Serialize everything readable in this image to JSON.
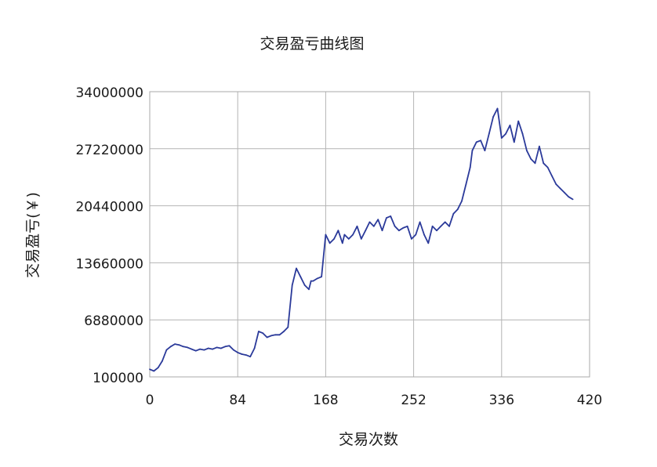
{
  "chart_data": {
    "type": "line",
    "title": "交易盈亏曲线图",
    "xlabel": "交易次数",
    "ylabel": "交易盈亏(￥)",
    "xlim": [
      0,
      420
    ],
    "ylim": [
      100000,
      34000000
    ],
    "x_ticks": [
      "0",
      "84",
      "168",
      "252",
      "336",
      "420"
    ],
    "y_ticks": [
      "100000",
      "6880000",
      "13660000",
      "20440000",
      "27220000",
      "34000000"
    ],
    "grid": true,
    "legend": "none",
    "line_color": "#2b3a9a",
    "series": [
      {
        "x": [
          0,
          4,
          8,
          12,
          16,
          20,
          24,
          28,
          32,
          36,
          40,
          44,
          48,
          52,
          56,
          60,
          64,
          68,
          72,
          76,
          80,
          84,
          88,
          92,
          96,
          100,
          104,
          108,
          112,
          116,
          120,
          124,
          128,
          132,
          136,
          140,
          144,
          148,
          152,
          154,
          156,
          160,
          164,
          168,
          172,
          176,
          180,
          184,
          186,
          190,
          194,
          198,
          202,
          206,
          210,
          214,
          218,
          222,
          226,
          230,
          234,
          238,
          242,
          246,
          250,
          254,
          258,
          262,
          266,
          270,
          274,
          278,
          282,
          286,
          290,
          294,
          298,
          302,
          306,
          308,
          312,
          316,
          320,
          324,
          328,
          332,
          336,
          340,
          344,
          348,
          352,
          356,
          360,
          364,
          368,
          372,
          376,
          380,
          384,
          388,
          392,
          396,
          400,
          404
        ],
        "values": [
          1000000,
          800000,
          1200000,
          2000000,
          3300000,
          3700000,
          4000000,
          3900000,
          3700000,
          3600000,
          3400000,
          3200000,
          3400000,
          3300000,
          3500000,
          3400000,
          3600000,
          3500000,
          3700000,
          3800000,
          3300000,
          3000000,
          2800000,
          2700000,
          2500000,
          3500000,
          5500000,
          5300000,
          4800000,
          5000000,
          5100000,
          5100000,
          5500000,
          6000000,
          11000000,
          13000000,
          12000000,
          11000000,
          10500000,
          11500000,
          11500000,
          11800000,
          12000000,
          17000000,
          16000000,
          16500000,
          17500000,
          16000000,
          17000000,
          16500000,
          17000000,
          18000000,
          16500000,
          17500000,
          18500000,
          18000000,
          18800000,
          17500000,
          19000000,
          19200000,
          18000000,
          17500000,
          17800000,
          18000000,
          16500000,
          17000000,
          18500000,
          17000000,
          16000000,
          18000000,
          17500000,
          18000000,
          18500000,
          18000000,
          19500000,
          20000000,
          21000000,
          23000000,
          25000000,
          27000000,
          28000000,
          28200000,
          27000000,
          29000000,
          31000000,
          32000000,
          28500000,
          29000000,
          30000000,
          28000000,
          30500000,
          29000000,
          27000000,
          26000000,
          25500000,
          27500000,
          25500000,
          25000000,
          24000000,
          23000000,
          22500000,
          22000000,
          21500000,
          21200000
        ]
      }
    ]
  }
}
